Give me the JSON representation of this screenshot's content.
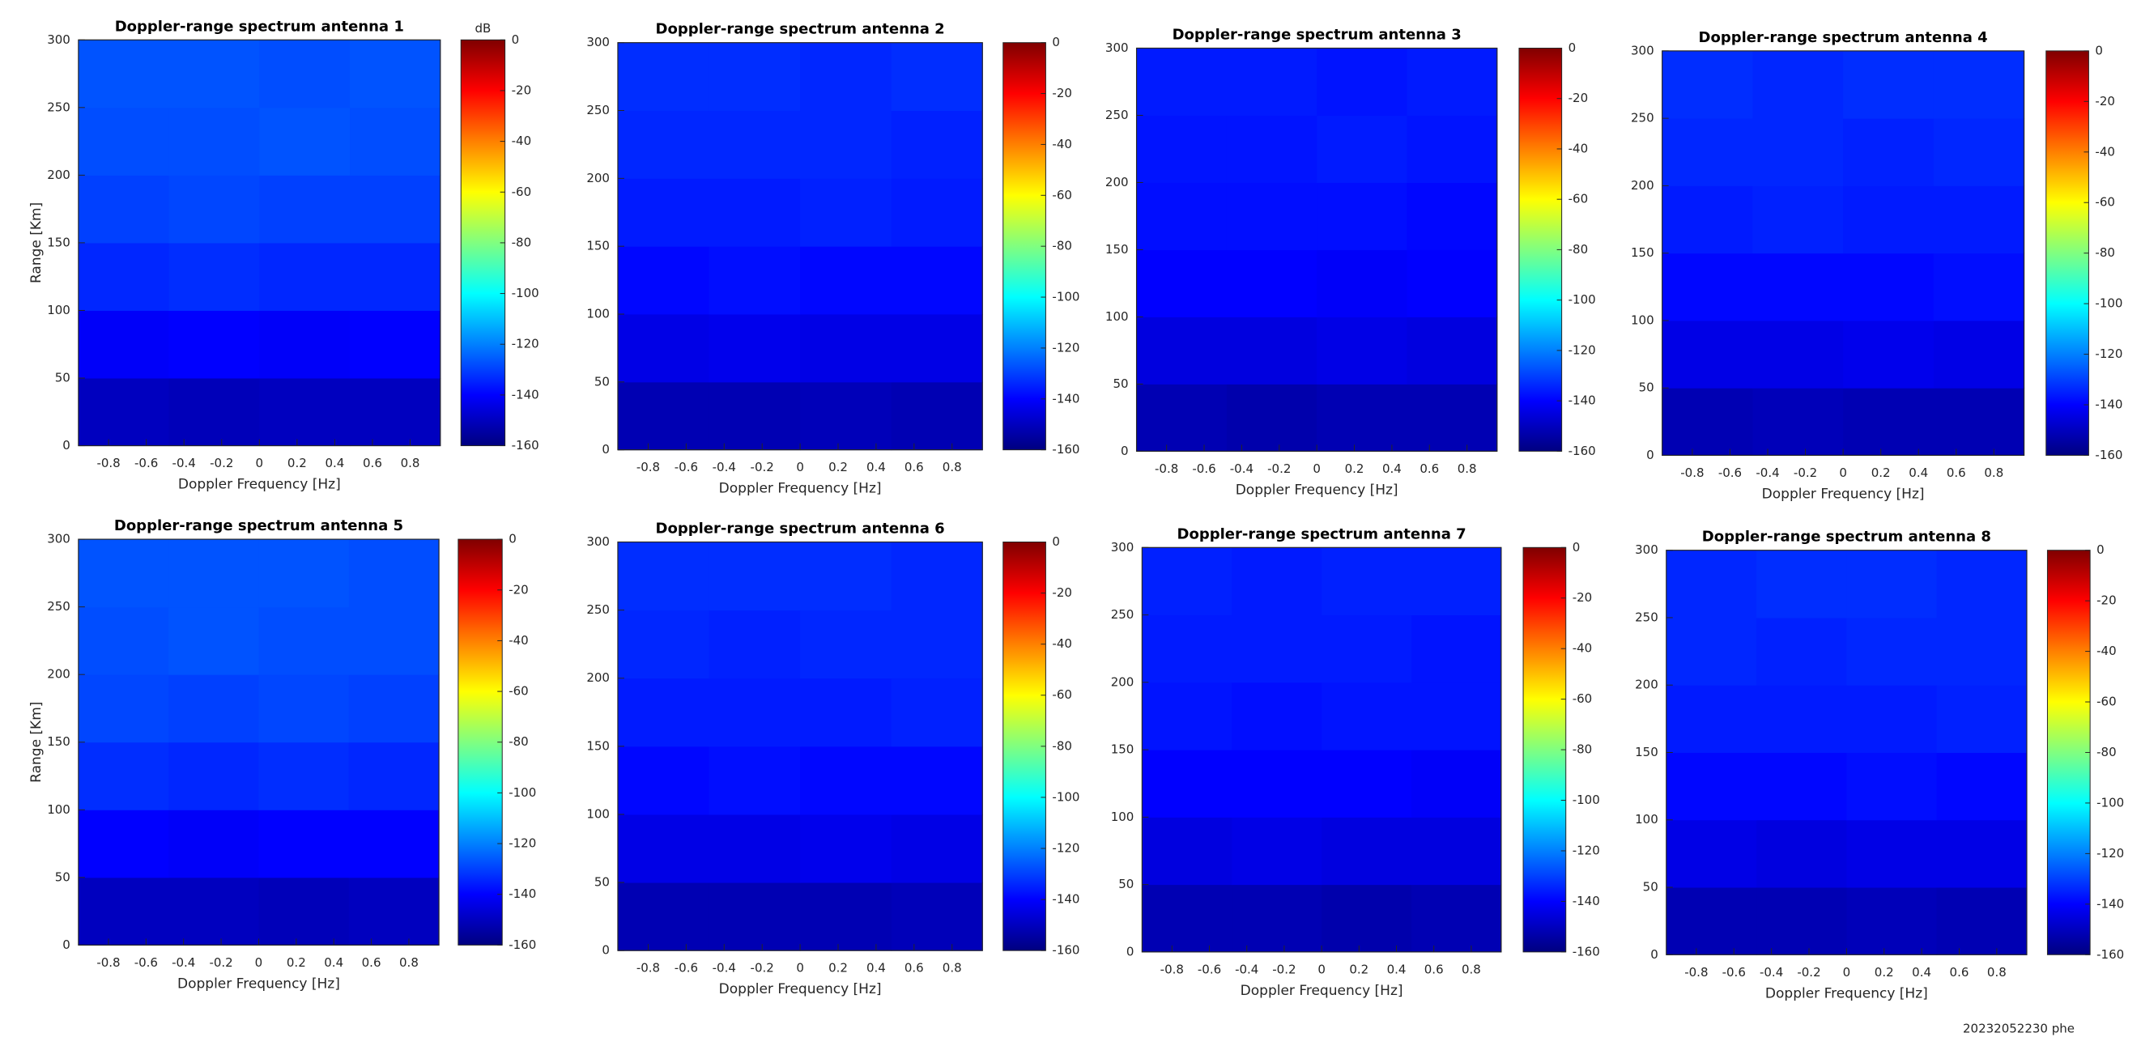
{
  "chart_data": [
    {
      "type": "heatmap",
      "title": "Doppler-range spectrum antenna 1",
      "xlabel": "Doppler Frequency [Hz]",
      "ylabel": "Range [Km]",
      "xlim": [
        -0.96,
        0.96
      ],
      "xticks": [
        -0.8,
        -0.6,
        -0.4,
        -0.2,
        0,
        0.2,
        0.4,
        0.6,
        0.8
      ],
      "ylim": [
        0,
        300
      ],
      "yticks": [
        0,
        50,
        100,
        150,
        200,
        250,
        300
      ],
      "x_bins": [
        -0.96,
        -0.48,
        0,
        0.48,
        0.96
      ],
      "y_bins": [
        0,
        50,
        100,
        150,
        200,
        250,
        300
      ],
      "values": [
        [
          -150,
          -151,
          -150,
          -150
        ],
        [
          -141,
          -140,
          -141,
          -140
        ],
        [
          -134,
          -133,
          -134,
          -134
        ],
        [
          -130,
          -129,
          -130,
          -130
        ],
        [
          -128,
          -128,
          -127,
          -128
        ],
        [
          -127,
          -127,
          -128,
          -127
        ]
      ],
      "colormap": "jet",
      "clim": [
        -160,
        0
      ],
      "cticks": [
        0,
        -20,
        -40,
        -60,
        -80,
        -100,
        -120,
        -140,
        -160
      ],
      "colorbar_label": "dB"
    },
    {
      "type": "heatmap",
      "title": "Doppler-range spectrum antenna 2",
      "xlabel": "Doppler Frequency [Hz]",
      "xlim": [
        -0.96,
        0.96
      ],
      "xticks": [
        -0.8,
        -0.6,
        -0.4,
        -0.2,
        0,
        0.2,
        0.4,
        0.6,
        0.8
      ],
      "ylim": [
        0,
        300
      ],
      "yticks": [
        0,
        50,
        100,
        150,
        200,
        250,
        300
      ],
      "x_bins": [
        -0.96,
        -0.48,
        0,
        0.48,
        0.96
      ],
      "y_bins": [
        0,
        50,
        100,
        150,
        200,
        250,
        300
      ],
      "values": [
        [
          -152,
          -152,
          -151,
          -152
        ],
        [
          -144,
          -143,
          -144,
          -144
        ],
        [
          -139,
          -138,
          -139,
          -139
        ],
        [
          -136,
          -136,
          -135,
          -136
        ],
        [
          -134,
          -134,
          -134,
          -135
        ],
        [
          -133,
          -133,
          -134,
          -133
        ]
      ],
      "colormap": "jet",
      "clim": [
        -160,
        0
      ],
      "cticks": [
        0,
        -20,
        -40,
        -60,
        -80,
        -100,
        -120,
        -140,
        -160
      ]
    },
    {
      "type": "heatmap",
      "title": "Doppler-range spectrum antenna 3",
      "xlabel": "Doppler Frequency [Hz]",
      "xlim": [
        -0.96,
        0.96
      ],
      "xticks": [
        -0.8,
        -0.6,
        -0.4,
        -0.2,
        0,
        0.2,
        0.4,
        0.6,
        0.8
      ],
      "ylim": [
        0,
        300
      ],
      "yticks": [
        0,
        50,
        100,
        150,
        200,
        250,
        300
      ],
      "x_bins": [
        -0.96,
        -0.48,
        0,
        0.48,
        0.96
      ],
      "y_bins": [
        0,
        50,
        100,
        150,
        200,
        250,
        300
      ],
      "values": [
        [
          -152,
          -153,
          -152,
          -152
        ],
        [
          -145,
          -145,
          -144,
          -145
        ],
        [
          -140,
          -140,
          -141,
          -140
        ],
        [
          -138,
          -138,
          -138,
          -139
        ],
        [
          -137,
          -137,
          -136,
          -137
        ],
        [
          -136,
          -136,
          -137,
          -136
        ]
      ],
      "colormap": "jet",
      "clim": [
        -160,
        0
      ],
      "cticks": [
        0,
        -20,
        -40,
        -60,
        -80,
        -100,
        -120,
        -140,
        -160
      ]
    },
    {
      "type": "heatmap",
      "title": "Doppler-range spectrum antenna 4",
      "xlabel": "Doppler Frequency [Hz]",
      "xlim": [
        -0.96,
        0.96
      ],
      "xticks": [
        -0.8,
        -0.6,
        -0.4,
        -0.2,
        0,
        0.2,
        0.4,
        0.6,
        0.8
      ],
      "ylim": [
        0,
        300
      ],
      "yticks": [
        0,
        50,
        100,
        150,
        200,
        250,
        300
      ],
      "x_bins": [
        -0.96,
        -0.48,
        0,
        0.48,
        0.96
      ],
      "y_bins": [
        0,
        50,
        100,
        150,
        200,
        250,
        300
      ],
      "values": [
        [
          -152,
          -151,
          -152,
          -152
        ],
        [
          -144,
          -144,
          -143,
          -144
        ],
        [
          -139,
          -139,
          -139,
          -138
        ],
        [
          -136,
          -135,
          -136,
          -136
        ],
        [
          -134,
          -134,
          -135,
          -134
        ],
        [
          -133,
          -134,
          -133,
          -133
        ]
      ],
      "colormap": "jet",
      "clim": [
        -160,
        0
      ],
      "cticks": [
        0,
        -20,
        -40,
        -60,
        -80,
        -100,
        -120,
        -140,
        -160
      ]
    },
    {
      "type": "heatmap",
      "title": "Doppler-range spectrum antenna 5",
      "xlabel": "Doppler Frequency [Hz]",
      "ylabel": "Range [Km]",
      "xlim": [
        -0.96,
        0.96
      ],
      "xticks": [
        -0.8,
        -0.6,
        -0.4,
        -0.2,
        0,
        0.2,
        0.4,
        0.6,
        0.8
      ],
      "ylim": [
        0,
        300
      ],
      "yticks": [
        0,
        50,
        100,
        150,
        200,
        250,
        300
      ],
      "x_bins": [
        -0.96,
        -0.48,
        0,
        0.48,
        0.96
      ],
      "y_bins": [
        0,
        50,
        100,
        150,
        200,
        250,
        300
      ],
      "values": [
        [
          -150,
          -150,
          -151,
          -150
        ],
        [
          -140,
          -141,
          -140,
          -140
        ],
        [
          -133,
          -134,
          -133,
          -134
        ],
        [
          -129,
          -130,
          -129,
          -130
        ],
        [
          -128,
          -127,
          -128,
          -128
        ],
        [
          -127,
          -127,
          -127,
          -128
        ]
      ],
      "colormap": "jet",
      "clim": [
        -160,
        0
      ],
      "cticks": [
        0,
        -20,
        -40,
        -60,
        -80,
        -100,
        -120,
        -140,
        -160
      ]
    },
    {
      "type": "heatmap",
      "title": "Doppler-range spectrum antenna 6",
      "xlabel": "Doppler Frequency [Hz]",
      "xlim": [
        -0.96,
        0.96
      ],
      "xticks": [
        -0.8,
        -0.6,
        -0.4,
        -0.2,
        0,
        0.2,
        0.4,
        0.6,
        0.8
      ],
      "ylim": [
        0,
        300
      ],
      "yticks": [
        0,
        50,
        100,
        150,
        200,
        250,
        300
      ],
      "x_bins": [
        -0.96,
        -0.48,
        0,
        0.48,
        0.96
      ],
      "y_bins": [
        0,
        50,
        100,
        150,
        200,
        250,
        300
      ],
      "values": [
        [
          -152,
          -152,
          -152,
          -151
        ],
        [
          -144,
          -144,
          -143,
          -144
        ],
        [
          -139,
          -138,
          -139,
          -139
        ],
        [
          -136,
          -136,
          -136,
          -135
        ],
        [
          -134,
          -135,
          -134,
          -134
        ],
        [
          -133,
          -133,
          -133,
          -134
        ]
      ],
      "colormap": "jet",
      "clim": [
        -160,
        0
      ],
      "cticks": [
        0,
        -20,
        -40,
        -60,
        -80,
        -100,
        -120,
        -140,
        -160
      ]
    },
    {
      "type": "heatmap",
      "title": "Doppler-range spectrum antenna 7",
      "xlabel": "Doppler Frequency [Hz]",
      "xlim": [
        -0.96,
        0.96
      ],
      "xticks": [
        -0.8,
        -0.6,
        -0.4,
        -0.2,
        0,
        0.2,
        0.4,
        0.6,
        0.8
      ],
      "ylim": [
        0,
        300
      ],
      "yticks": [
        0,
        50,
        100,
        150,
        200,
        250,
        300
      ],
      "x_bins": [
        -0.96,
        -0.48,
        0,
        0.48,
        0.96
      ],
      "y_bins": [
        0,
        50,
        100,
        150,
        200,
        250,
        300
      ],
      "values": [
        [
          -152,
          -152,
          -153,
          -152
        ],
        [
          -145,
          -144,
          -145,
          -145
        ],
        [
          -140,
          -140,
          -140,
          -141
        ],
        [
          -137,
          -138,
          -137,
          -137
        ],
        [
          -136,
          -136,
          -136,
          -137
        ],
        [
          -135,
          -136,
          -135,
          -135
        ]
      ],
      "colormap": "jet",
      "clim": [
        -160,
        0
      ],
      "cticks": [
        0,
        -20,
        -40,
        -60,
        -80,
        -100,
        -120,
        -140,
        -160
      ]
    },
    {
      "type": "heatmap",
      "title": "Doppler-range spectrum antenna 8",
      "xlabel": "Doppler Frequency [Hz]",
      "xlim": [
        -0.96,
        0.96
      ],
      "xticks": [
        -0.8,
        -0.6,
        -0.4,
        -0.2,
        0,
        0.2,
        0.4,
        0.6,
        0.8
      ],
      "ylim": [
        0,
        300
      ],
      "yticks": [
        0,
        50,
        100,
        150,
        200,
        250,
        300
      ],
      "x_bins": [
        -0.96,
        -0.48,
        0,
        0.48,
        0.96
      ],
      "y_bins": [
        0,
        50,
        100,
        150,
        200,
        250,
        300
      ],
      "values": [
        [
          -152,
          -152,
          -151,
          -152
        ],
        [
          -144,
          -145,
          -144,
          -144
        ],
        [
          -139,
          -139,
          -138,
          -139
        ],
        [
          -136,
          -136,
          -136,
          -135
        ],
        [
          -134,
          -135,
          -134,
          -134
        ],
        [
          -134,
          -133,
          -133,
          -134
        ]
      ],
      "colormap": "jet",
      "clim": [
        -160,
        0
      ],
      "cticks": [
        0,
        -20,
        -40,
        -60,
        -80,
        -100,
        -120,
        -140,
        -160
      ]
    }
  ],
  "footer": "20232052230 phe"
}
